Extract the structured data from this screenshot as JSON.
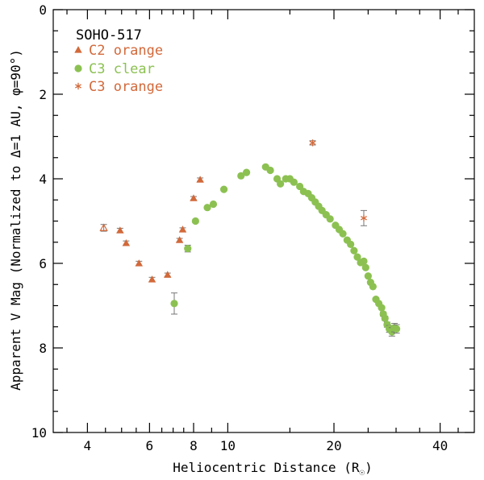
{
  "chart_data": {
    "type": "scatter",
    "title": "",
    "legend_title": "SOHO-517",
    "legend_placement": "top-left",
    "grid": false,
    "xlabel": "Heliocentric Distance (R",
    "xlabel_sub": "☉",
    "xlabel_end": ")",
    "ylabel": "Apparent V Mag (Normalized to Δ=1 AU, φ=90°)",
    "xscale": "log",
    "xlim": [
      3.2,
      50
    ],
    "ylim": [
      10,
      0
    ],
    "y_inverted": true,
    "xticks_major": [
      4,
      6,
      8,
      10,
      20,
      40
    ],
    "xtick_labels": [
      "4",
      "6",
      "8",
      "10",
      "20",
      "40"
    ],
    "xticks_minor": [
      3.5,
      4.5,
      5,
      5.5,
      6.5,
      7,
      7.5,
      9,
      15,
      25,
      30,
      35,
      45
    ],
    "yticks_major": [
      0,
      2,
      4,
      6,
      8,
      10
    ],
    "ytick_labels": [
      "0",
      "2",
      "4",
      "6",
      "8",
      "10"
    ],
    "yticks_minor": [
      0.5,
      1,
      1.5,
      2.5,
      3,
      3.5,
      4.5,
      5,
      5.5,
      6.5,
      7,
      7.5,
      8.5,
      9,
      9.5
    ],
    "series": [
      {
        "name": "C2 orange",
        "marker": "triangle",
        "color": "#d2693a",
        "points": [
          {
            "x": 4.45,
            "y": 5.16,
            "err": 0.08,
            "open": true
          },
          {
            "x": 4.95,
            "y": 5.22,
            "err": 0.05
          },
          {
            "x": 5.15,
            "y": 5.52,
            "err": 0.05
          },
          {
            "x": 5.6,
            "y": 6.0,
            "err": 0.05
          },
          {
            "x": 6.1,
            "y": 6.38,
            "err": 0.05
          },
          {
            "x": 6.75,
            "y": 6.27,
            "err": 0.04
          },
          {
            "x": 7.3,
            "y": 5.45,
            "err": 0.04
          },
          {
            "x": 7.45,
            "y": 5.2,
            "err": 0.04
          },
          {
            "x": 8.0,
            "y": 4.46,
            "err": 0.04
          },
          {
            "x": 8.35,
            "y": 4.02,
            "err": 0.04
          }
        ]
      },
      {
        "name": "C3 clear",
        "marker": "circle",
        "color": "#8cc152",
        "points": [
          {
            "x": 7.05,
            "y": 6.95,
            "err": 0.25
          },
          {
            "x": 7.7,
            "y": 5.65,
            "err": 0.08
          },
          {
            "x": 8.1,
            "y": 5.0
          },
          {
            "x": 8.75,
            "y": 4.68
          },
          {
            "x": 9.1,
            "y": 4.6
          },
          {
            "x": 9.75,
            "y": 4.25
          },
          {
            "x": 10.9,
            "y": 3.93
          },
          {
            "x": 11.3,
            "y": 3.85
          },
          {
            "x": 12.8,
            "y": 3.72
          },
          {
            "x": 13.2,
            "y": 3.8
          },
          {
            "x": 13.8,
            "y": 4.0
          },
          {
            "x": 14.1,
            "y": 4.12
          },
          {
            "x": 14.6,
            "y": 4.0
          },
          {
            "x": 15.0,
            "y": 4.0
          },
          {
            "x": 15.4,
            "y": 4.08
          },
          {
            "x": 16.0,
            "y": 4.18
          },
          {
            "x": 16.4,
            "y": 4.3
          },
          {
            "x": 16.9,
            "y": 4.35
          },
          {
            "x": 17.3,
            "y": 4.45
          },
          {
            "x": 17.7,
            "y": 4.55
          },
          {
            "x": 18.1,
            "y": 4.65
          },
          {
            "x": 18.5,
            "y": 4.75
          },
          {
            "x": 19.0,
            "y": 4.85
          },
          {
            "x": 19.5,
            "y": 4.95
          },
          {
            "x": 20.2,
            "y": 5.1
          },
          {
            "x": 20.7,
            "y": 5.2
          },
          {
            "x": 21.2,
            "y": 5.3
          },
          {
            "x": 21.8,
            "y": 5.45
          },
          {
            "x": 22.3,
            "y": 5.55
          },
          {
            "x": 22.8,
            "y": 5.7
          },
          {
            "x": 23.3,
            "y": 5.85
          },
          {
            "x": 23.8,
            "y": 5.98
          },
          {
            "x": 24.3,
            "y": 5.95
          },
          {
            "x": 24.6,
            "y": 6.1
          },
          {
            "x": 25.0,
            "y": 6.3
          },
          {
            "x": 25.4,
            "y": 6.45
          },
          {
            "x": 25.8,
            "y": 6.55
          },
          {
            "x": 26.3,
            "y": 6.85
          },
          {
            "x": 26.8,
            "y": 6.95
          },
          {
            "x": 27.3,
            "y": 7.05
          },
          {
            "x": 27.6,
            "y": 7.2,
            "err": 0.05
          },
          {
            "x": 27.9,
            "y": 7.3,
            "err": 0.05
          },
          {
            "x": 28.3,
            "y": 7.45,
            "err": 0.06
          },
          {
            "x": 28.7,
            "y": 7.55,
            "err": 0.08
          },
          {
            "x": 29.2,
            "y": 7.62,
            "err": 0.1
          },
          {
            "x": 29.7,
            "y": 7.52,
            "err": 0.1
          },
          {
            "x": 30.1,
            "y": 7.55,
            "err": 0.1
          }
        ]
      },
      {
        "name": "C3 orange",
        "marker": "asterisk",
        "color": "#d2693a",
        "points": [
          {
            "x": 17.4,
            "y": 3.15,
            "err": 0.05
          },
          {
            "x": 24.3,
            "y": 4.93,
            "err": 0.18
          }
        ]
      }
    ]
  }
}
